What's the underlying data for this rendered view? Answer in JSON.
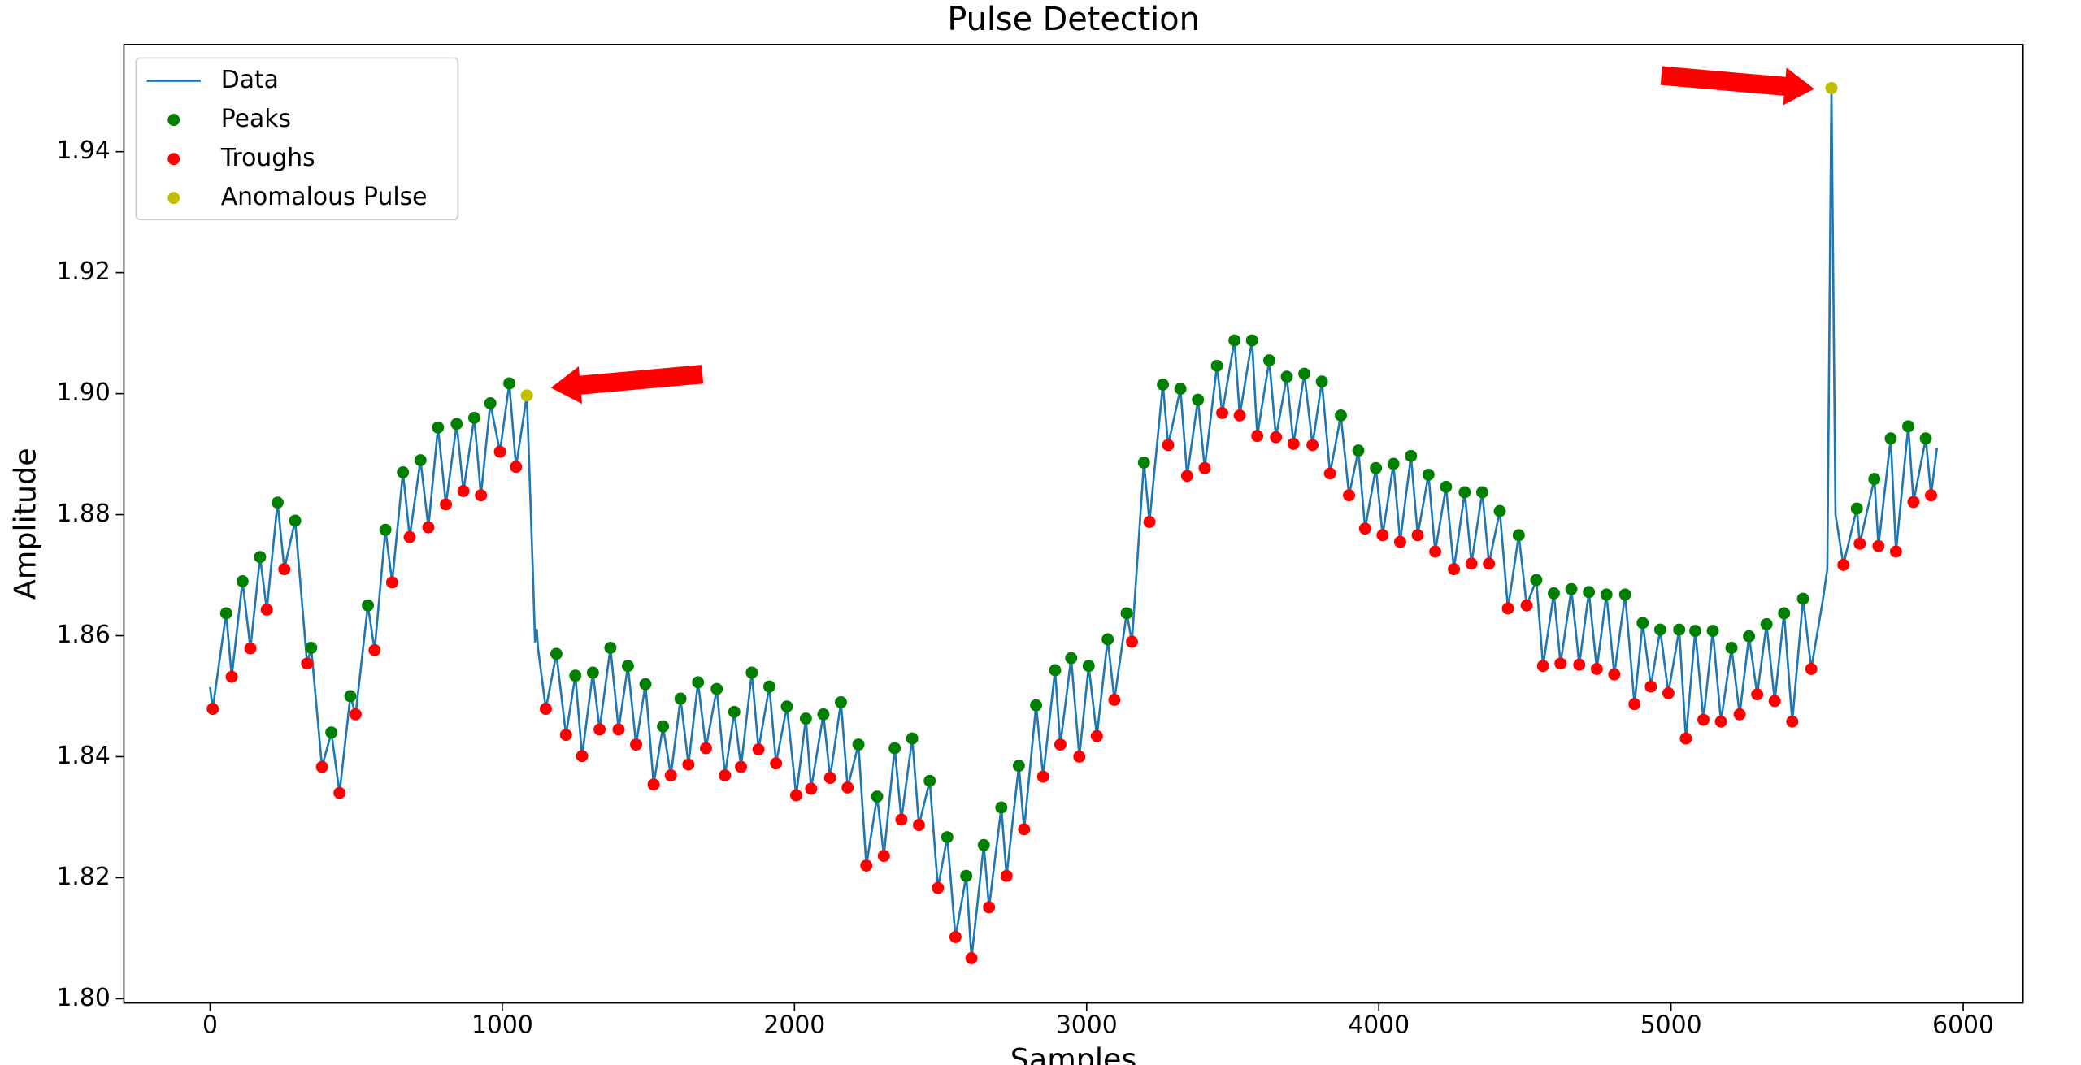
{
  "chart_data": {
    "type": "line",
    "title": "Pulse Detection",
    "x_label": "Samples",
    "y_label": "Amplitude",
    "xlim": [
      -295,
      6205
    ],
    "ylim": [
      1.7993,
      1.9577
    ],
    "xticks": [
      0,
      1000,
      2000,
      3000,
      4000,
      5000,
      6000
    ],
    "yticks": [
      {
        "value": 1.8,
        "label": "1.80"
      },
      1.82,
      1.84,
      1.86,
      1.88,
      {
        "value": 1.9,
        "label": "1.90"
      },
      1.92,
      1.94
    ],
    "legend": "upper left",
    "series": [
      {
        "name": "Data",
        "type": "line",
        "color": "#1f77b4",
        "x": [
          0,
          9,
          55,
          74,
          111,
          138,
          171,
          194,
          231,
          254,
          291,
          332,
          346,
          383,
          415,
          443,
          480,
          498,
          540,
          563,
          600,
          623,
          660,
          683,
          720,
          747,
          780,
          807,
          844,
          867,
          904,
          927,
          959,
          992,
          1024,
          1047,
          1084,
          1105,
          1112,
          1118,
          1122,
          1149,
          1185,
          1218,
          1250,
          1273,
          1310,
          1333,
          1370,
          1398,
          1430,
          1458,
          1490,
          1518,
          1550,
          1577,
          1610,
          1637,
          1670,
          1697,
          1734,
          1762,
          1794,
          1817,
          1854,
          1877,
          1914,
          1937,
          1974,
          2006,
          2039,
          2057,
          2099,
          2122,
          2159,
          2182,
          2219,
          2246,
          2283,
          2306,
          2343,
          2366,
          2403,
          2426,
          2463,
          2491,
          2523,
          2551,
          2588,
          2606,
          2648,
          2666,
          2708,
          2726,
          2768,
          2786,
          2827,
          2851,
          2892,
          2910,
          2947,
          2975,
          3007,
          3035,
          3072,
          3095,
          3137,
          3155,
          3196,
          3215,
          3261,
          3279,
          3321,
          3344,
          3381,
          3404,
          3446,
          3464,
          3506,
          3524,
          3566,
          3584,
          3625,
          3648,
          3685,
          3708,
          3745,
          3773,
          3805,
          3833,
          3870,
          3898,
          3930,
          3953,
          3990,
          4013,
          4050,
          4073,
          4110,
          4133,
          4170,
          4193,
          4230,
          4257,
          4294,
          4317,
          4354,
          4377,
          4414,
          4442,
          4479,
          4506,
          4539,
          4562,
          4599,
          4622,
          4659,
          4686,
          4719,
          4746,
          4779,
          4806,
          4843,
          4875,
          4903,
          4931,
          4963,
          4991,
          5028,
          5051,
          5083,
          5111,
          5143,
          5171,
          5207,
          5235,
          5267,
          5295,
          5327,
          5355,
          5387,
          5415,
          5452,
          5480,
          5520,
          5535,
          5549,
          5563,
          5590,
          5636,
          5646,
          5696,
          5710,
          5752,
          5770,
          5812,
          5830,
          5872,
          5890,
          5910
        ],
        "values": [
          1.8515,
          1.8479,
          1.8637,
          1.8532,
          1.869,
          1.8579,
          1.873,
          1.8643,
          1.882,
          1.871,
          1.879,
          1.8554,
          1.858,
          1.8383,
          1.844,
          1.834,
          1.85,
          1.847,
          1.865,
          1.8576,
          1.8775,
          1.8688,
          1.887,
          1.8763,
          1.889,
          1.8779,
          1.8944,
          1.8817,
          1.895,
          1.8839,
          1.896,
          1.8832,
          1.8984,
          1.8904,
          1.9017,
          1.8879,
          1.8997,
          1.87,
          1.859,
          1.861,
          1.858,
          1.8479,
          1.857,
          1.8436,
          1.8534,
          1.8401,
          1.8539,
          1.8445,
          1.858,
          1.8445,
          1.855,
          1.842,
          1.852,
          1.8354,
          1.845,
          1.8369,
          1.8496,
          1.8387,
          1.8523,
          1.8414,
          1.8512,
          1.8369,
          1.8474,
          1.8383,
          1.8539,
          1.8412,
          1.8516,
          1.8389,
          1.8483,
          1.8336,
          1.8463,
          1.8347,
          1.847,
          1.8365,
          1.849,
          1.8349,
          1.842,
          1.822,
          1.8334,
          1.8236,
          1.8414,
          1.8296,
          1.843,
          1.8287,
          1.836,
          1.8183,
          1.8267,
          1.8102,
          1.8203,
          1.8067,
          1.8254,
          1.8151,
          1.8316,
          1.8203,
          1.8385,
          1.828,
          1.8485,
          1.8367,
          1.8543,
          1.842,
          1.8563,
          1.84,
          1.855,
          1.8434,
          1.8594,
          1.8494,
          1.8637,
          1.859,
          1.8886,
          1.8788,
          1.9015,
          1.8915,
          1.9008,
          1.8864,
          1.899,
          1.8877,
          1.9046,
          1.8968,
          1.9088,
          1.8964,
          1.9088,
          1.893,
          1.9055,
          1.8928,
          1.9028,
          1.8917,
          1.9033,
          1.8915,
          1.902,
          1.8868,
          1.8964,
          1.8832,
          1.8906,
          1.8777,
          1.8877,
          1.8766,
          1.8884,
          1.8755,
          1.8897,
          1.8766,
          1.8866,
          1.8739,
          1.8846,
          1.871,
          1.8837,
          1.8719,
          1.8837,
          1.8719,
          1.8806,
          1.8645,
          1.8766,
          1.865,
          1.8692,
          1.855,
          1.867,
          1.8554,
          1.8677,
          1.8552,
          1.8672,
          1.8545,
          1.8668,
          1.8536,
          1.8668,
          1.8487,
          1.8621,
          1.8516,
          1.861,
          1.8505,
          1.861,
          1.843,
          1.8608,
          1.8461,
          1.8608,
          1.8458,
          1.858,
          1.847,
          1.8599,
          1.8503,
          1.8619,
          1.8492,
          1.8637,
          1.8458,
          1.8661,
          1.8545,
          1.866,
          1.871,
          1.9505,
          1.88,
          1.8717,
          1.881,
          1.8752,
          1.8859,
          1.8748,
          1.8926,
          1.8739,
          1.8946,
          1.8821,
          1.8926,
          1.8832,
          1.891
        ]
      },
      {
        "name": "Peaks",
        "type": "scatter",
        "color": "#008000",
        "x": [
          55,
          111,
          171,
          231,
          291,
          346,
          415,
          480,
          540,
          600,
          660,
          720,
          780,
          844,
          904,
          959,
          1024,
          1185,
          1250,
          1310,
          1370,
          1430,
          1490,
          1550,
          1610,
          1670,
          1734,
          1794,
          1854,
          1914,
          1974,
          2039,
          2099,
          2159,
          2219,
          2283,
          2343,
          2403,
          2463,
          2523,
          2588,
          2648,
          2708,
          2768,
          2827,
          2892,
          2947,
          3007,
          3072,
          3137,
          3196,
          3261,
          3321,
          3381,
          3446,
          3506,
          3566,
          3625,
          3685,
          3745,
          3805,
          3870,
          3930,
          3990,
          4050,
          4110,
          4170,
          4230,
          4294,
          4354,
          4414,
          4479,
          4539,
          4599,
          4659,
          4719,
          4779,
          4843,
          4903,
          4963,
          5028,
          5083,
          5143,
          5207,
          5267,
          5327,
          5387,
          5452,
          5636,
          5696,
          5752,
          5812,
          5872
        ],
        "values": [
          1.8637,
          1.869,
          1.873,
          1.882,
          1.879,
          1.858,
          1.844,
          1.85,
          1.865,
          1.8775,
          1.887,
          1.889,
          1.8944,
          1.895,
          1.896,
          1.8984,
          1.9017,
          1.857,
          1.8534,
          1.8539,
          1.858,
          1.855,
          1.852,
          1.845,
          1.8496,
          1.8523,
          1.8512,
          1.8474,
          1.8539,
          1.8516,
          1.8483,
          1.8463,
          1.847,
          1.849,
          1.842,
          1.8334,
          1.8414,
          1.843,
          1.836,
          1.8267,
          1.8203,
          1.8254,
          1.8316,
          1.8385,
          1.8485,
          1.8543,
          1.8563,
          1.855,
          1.8594,
          1.8637,
          1.8886,
          1.9015,
          1.9008,
          1.899,
          1.9046,
          1.9088,
          1.9088,
          1.9055,
          1.9028,
          1.9033,
          1.902,
          1.8964,
          1.8906,
          1.8877,
          1.8884,
          1.8897,
          1.8866,
          1.8846,
          1.8837,
          1.8837,
          1.8806,
          1.8766,
          1.8692,
          1.867,
          1.8677,
          1.8672,
          1.8668,
          1.8668,
          1.8621,
          1.861,
          1.861,
          1.8608,
          1.8608,
          1.858,
          1.8599,
          1.8619,
          1.8637,
          1.8661,
          1.881,
          1.8859,
          1.8926,
          1.8946,
          1.8926
        ]
      },
      {
        "name": "Troughs",
        "type": "scatter",
        "color": "#ff0000",
        "x": [
          9,
          74,
          138,
          194,
          254,
          332,
          383,
          443,
          498,
          563,
          623,
          683,
          747,
          807,
          867,
          927,
          992,
          1047,
          1149,
          1218,
          1273,
          1333,
          1398,
          1458,
          1518,
          1577,
          1637,
          1697,
          1762,
          1817,
          1877,
          1937,
          2006,
          2057,
          2122,
          2182,
          2246,
          2306,
          2366,
          2426,
          2491,
          2551,
          2606,
          2666,
          2726,
          2786,
          2851,
          2910,
          2975,
          3035,
          3095,
          3155,
          3215,
          3279,
          3344,
          3404,
          3464,
          3524,
          3584,
          3648,
          3708,
          3773,
          3833,
          3898,
          3953,
          4013,
          4073,
          4133,
          4193,
          4257,
          4317,
          4377,
          4442,
          4506,
          4562,
          4622,
          4686,
          4746,
          4806,
          4875,
          4931,
          4991,
          5051,
          5111,
          5171,
          5235,
          5295,
          5355,
          5415,
          5480,
          5590,
          5646,
          5710,
          5770,
          5830,
          5890
        ],
        "values": [
          1.8479,
          1.8532,
          1.8579,
          1.8643,
          1.871,
          1.8554,
          1.8383,
          1.834,
          1.847,
          1.8576,
          1.8688,
          1.8763,
          1.8779,
          1.8817,
          1.8839,
          1.8832,
          1.8904,
          1.8879,
          1.8479,
          1.8436,
          1.8401,
          1.8445,
          1.8445,
          1.842,
          1.8354,
          1.8369,
          1.8387,
          1.8414,
          1.8369,
          1.8383,
          1.8412,
          1.8389,
          1.8336,
          1.8347,
          1.8365,
          1.8349,
          1.822,
          1.8236,
          1.8296,
          1.8287,
          1.8183,
          1.8102,
          1.8067,
          1.8151,
          1.8203,
          1.828,
          1.8367,
          1.842,
          1.84,
          1.8434,
          1.8494,
          1.859,
          1.8788,
          1.8915,
          1.8864,
          1.8877,
          1.8968,
          1.8964,
          1.893,
          1.8928,
          1.8917,
          1.8915,
          1.8868,
          1.8832,
          1.8777,
          1.8766,
          1.8755,
          1.8766,
          1.8739,
          1.871,
          1.8719,
          1.8719,
          1.8645,
          1.865,
          1.855,
          1.8554,
          1.8552,
          1.8545,
          1.8536,
          1.8487,
          1.8516,
          1.8505,
          1.843,
          1.8461,
          1.8458,
          1.847,
          1.8503,
          1.8492,
          1.8458,
          1.8545,
          1.8717,
          1.8752,
          1.8748,
          1.8739,
          1.8821,
          1.8832
        ]
      },
      {
        "name": "Anomalous Pulse",
        "type": "scatter",
        "color": "#bfbf00",
        "x": [
          1084,
          5549
        ],
        "values": [
          1.8997,
          1.9505
        ]
      }
    ]
  }
}
